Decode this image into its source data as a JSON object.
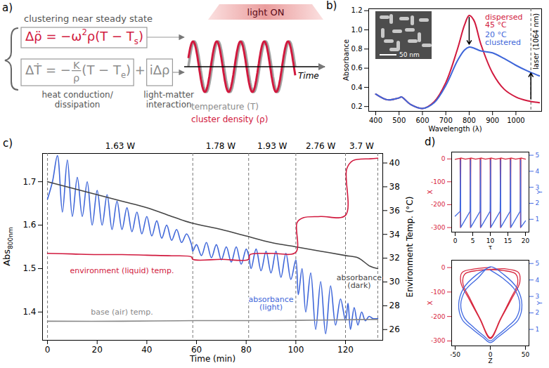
{
  "diagram": {
    "panel": "a)",
    "header": "clustering near steady state",
    "equations": [
      {
        "color": "#d1193e",
        "parts": [
          {
            "text": "Δρ̈ = −ω"
          },
          {
            "text": "2",
            "sup": true
          },
          {
            "text": "ρ(T − T"
          },
          {
            "text": "s",
            "sub": true
          },
          {
            "text": ")"
          }
        ]
      },
      {
        "color": "#8c8c8c",
        "parts": [
          {
            "text": "ΔṪ = −"
          },
          {
            "frac": [
              "K",
              "ρ"
            ]
          },
          {
            "text": "(T − T"
          },
          {
            "text": "e",
            "sub": true
          },
          {
            "text": ")"
          },
          {
            "text": " + "
          },
          {
            "text": "iΔρ"
          }
        ]
      }
    ],
    "term_labels": [
      "heat conduction/\ndissipation",
      "light-matter\ninteraction"
    ],
    "banner": "light ON",
    "time_label": "Time",
    "wave_labels": [
      {
        "text": "temperature (T)",
        "color": "#8c8c8c"
      },
      {
        "text": "cluster density (ρ)",
        "color": "#d1193e"
      }
    ]
  },
  "chart_data": [
    {
      "panel": "b)",
      "type": "line",
      "xlabel": "Wavelength (λ)",
      "ylabel": "Absorbance",
      "xlim": [
        370,
        1110
      ],
      "xticks": [
        400,
        500,
        600,
        700,
        800,
        900,
        1000
      ],
      "ylim": [
        0.15,
        1.22
      ],
      "yticks": [
        0.2,
        0.4,
        0.6,
        0.8,
        {
          "value": 1,
          "label": "1.0"
        },
        1.2
      ],
      "x": [
        400,
        450,
        500,
        510,
        550,
        600,
        650,
        700,
        750,
        780,
        800,
        820,
        850,
        900,
        950,
        1000,
        1050,
        1100
      ],
      "series": [
        {
          "name": "dispersed\n45 °C",
          "color": "#d1193e",
          "values": [
            0.33,
            0.27,
            0.29,
            0.3,
            0.22,
            0.18,
            0.25,
            0.45,
            0.8,
            1.05,
            1.15,
            1.1,
            0.85,
            0.55,
            0.38,
            0.3,
            0.26,
            0.24
          ]
        },
        {
          "name": "20 °C\nclustered",
          "color": "#3e66d9",
          "values": [
            0.33,
            0.27,
            0.29,
            0.3,
            0.22,
            0.18,
            0.24,
            0.42,
            0.68,
            0.79,
            0.82,
            0.81,
            0.78,
            0.76,
            0.7,
            0.63,
            0.57,
            0.52
          ]
        }
      ],
      "vlines": [
        {
          "value": 1064,
          "label": "laser (1064 nm)"
        }
      ],
      "inset": {
        "scale_bar": "50 nm"
      }
    },
    {
      "panel": "c)",
      "type": "line",
      "xlabel": "Time (min)",
      "ylabel": "Abs",
      "ylabel_sub": "800nm",
      "y2label": "Environment Temp. (°C)",
      "xlim": [
        -2,
        135
      ],
      "xticks": [
        0,
        20,
        40,
        60,
        80,
        100,
        120
      ],
      "ylim": [
        1.335,
        1.765
      ],
      "yticks": [
        1.4,
        1.5,
        1.6,
        1.7
      ],
      "y2lim": [
        25.1,
        40.8
      ],
      "y2ticks": [
        26,
        28,
        30,
        32,
        34,
        36,
        38,
        40
      ],
      "segments": [
        {
          "label": "1.63 W",
          "start": 0,
          "end": 58.5
        },
        {
          "label": "1.78 W",
          "start": 58.5,
          "end": 81
        },
        {
          "label": "1.93 W",
          "start": 81,
          "end": 100
        },
        {
          "label": "2.76 W",
          "start": 100,
          "end": 120
        },
        {
          "label": "3.7 W",
          "start": 120,
          "end": 133
        }
      ],
      "series": [
        {
          "name": "absorbance\n(light)",
          "color": "#3e66d9",
          "axis": "y",
          "x": [
            0,
            2,
            4,
            6,
            8,
            10,
            12,
            14,
            16,
            18,
            20,
            22,
            24,
            26,
            28,
            30,
            32,
            34,
            36,
            38,
            40,
            42,
            44,
            46,
            48,
            50,
            52,
            54,
            56,
            58,
            58.5,
            60,
            62,
            64,
            66,
            68,
            70,
            72,
            74,
            76,
            78,
            80,
            81,
            82,
            84,
            86,
            88,
            90,
            92,
            94,
            96,
            98,
            100,
            101,
            102.5,
            104,
            106,
            108,
            110,
            112,
            114,
            116,
            118,
            120,
            121,
            122,
            123.5,
            125,
            126.5,
            128,
            129.5,
            131,
            133
          ],
          "values": [
            1.66,
            1.7,
            1.76,
            1.63,
            1.75,
            1.62,
            1.71,
            1.62,
            1.7,
            1.6,
            1.68,
            1.6,
            1.67,
            1.59,
            1.655,
            1.59,
            1.64,
            1.585,
            1.63,
            1.58,
            1.62,
            1.575,
            1.61,
            1.57,
            1.6,
            1.565,
            1.59,
            1.56,
            1.58,
            1.555,
            1.54,
            1.555,
            1.53,
            1.56,
            1.525,
            1.555,
            1.52,
            1.55,
            1.515,
            1.55,
            1.51,
            1.545,
            1.53,
            1.5,
            1.545,
            1.495,
            1.54,
            1.49,
            1.54,
            1.48,
            1.535,
            1.475,
            1.52,
            1.44,
            1.5,
            1.4,
            1.49,
            1.36,
            1.47,
            1.35,
            1.46,
            1.37,
            1.43,
            1.38,
            1.42,
            1.36,
            1.41,
            1.37,
            1.4,
            1.38,
            1.39,
            1.385,
            1.385
          ]
        },
        {
          "name": "absorbance\n(dark)",
          "color": "#444444",
          "axis": "y",
          "x": [
            0,
            10,
            20,
            30,
            40,
            50,
            58,
            70,
            80,
            90,
            100,
            110,
            120,
            125,
            130,
            133
          ],
          "values": [
            1.7,
            1.685,
            1.67,
            1.655,
            1.64,
            1.62,
            1.605,
            1.59,
            1.575,
            1.56,
            1.55,
            1.54,
            1.53,
            1.525,
            1.505,
            1.5
          ]
        },
        {
          "name": "environment (liquid) temp.",
          "color": "#d1193e",
          "axis": "y2",
          "x": [
            0,
            10,
            20,
            30,
            40,
            50,
            58,
            58.5,
            70,
            81,
            81.5,
            90,
            100,
            100.5,
            103,
            110,
            120,
            120.5,
            123,
            130,
            133
          ],
          "values": [
            32.4,
            32.35,
            32.3,
            32.3,
            32.25,
            32.2,
            32.1,
            31.9,
            31.9,
            31.9,
            32.3,
            32.4,
            32.5,
            35.0,
            35.4,
            35.5,
            35.6,
            39.5,
            40.2,
            40.35,
            40.4
          ]
        },
        {
          "name": "base (air) temp.",
          "color": "#888888",
          "axis": "y2",
          "x": [
            0,
            30,
            60,
            90,
            110,
            133
          ],
          "values": [
            26.7,
            26.7,
            26.75,
            26.75,
            26.8,
            26.85
          ]
        }
      ]
    },
    {
      "panel": "d)",
      "type": "line",
      "xlabel": "τ",
      "ylabel": "X",
      "y2label": "Y",
      "xlim": [
        -1,
        21
      ],
      "xticks": [
        0,
        5,
        10,
        15,
        20
      ],
      "ylim": [
        -320,
        30
      ],
      "yticks": [
        0,
        -100,
        -200,
        -300
      ],
      "y2lim": [
        0.2,
        5.2
      ],
      "y2ticks": [
        1,
        2,
        3,
        4,
        5
      ],
      "series": [
        {
          "color": "#d7263d",
          "axis": "y",
          "x": [
            0,
            1.4,
            1.5,
            1.6,
            2.9,
            4.25,
            4.35,
            4.45,
            5.8,
            7.1,
            7.2,
            7.3,
            8.6,
            9.95,
            10.05,
            10.15,
            11.5,
            12.8,
            12.9,
            13.0,
            14.3,
            15.65,
            15.75,
            15.85,
            17.2,
            18.5,
            18.6,
            18.7,
            20
          ],
          "values": [
            -2,
            3,
            -300,
            4,
            -1,
            3,
            -300,
            4,
            -1,
            3,
            -300,
            4,
            -1,
            3,
            -300,
            4,
            -1,
            3,
            -300,
            4,
            -1,
            3,
            -300,
            4,
            -1,
            3,
            -300,
            4,
            -1
          ]
        },
        {
          "color": "#4169e1",
          "axis": "y2",
          "x": [
            0,
            1.4,
            1.5,
            1.6,
            4.25,
            4.35,
            4.45,
            7.1,
            7.2,
            7.3,
            9.95,
            10.05,
            10.15,
            12.8,
            12.9,
            13.0,
            15.65,
            15.75,
            15.85,
            18.5,
            18.6,
            18.7,
            20
          ],
          "values": [
            1.2,
            1.5,
            4.7,
            0.5,
            1.5,
            4.7,
            0.5,
            1.5,
            4.7,
            0.5,
            1.5,
            4.7,
            0.5,
            1.5,
            4.7,
            0.5,
            1.5,
            4.7,
            0.5,
            1.5,
            4.7,
            0.5,
            0.9
          ]
        }
      ]
    },
    {
      "type": "line",
      "xlabel": "Z",
      "ylabel": "X",
      "y2label": "Y",
      "xlim": [
        -55,
        55
      ],
      "xticks": [
        -50,
        0,
        50
      ],
      "ylim": [
        -320,
        30
      ],
      "yticks": [
        0,
        -100,
        -200,
        -300
      ],
      "y2lim": [
        0,
        5.2
      ],
      "y2ticks": [
        1,
        2,
        3,
        4,
        5
      ],
      "series": [
        {
          "color": "#d7263d",
          "axis": "y",
          "x": [
            0,
            -20,
            -40,
            -42,
            -30,
            -15,
            0,
            15,
            30,
            42,
            40,
            20,
            0,
            -18,
            -36,
            -39,
            -28,
            -14,
            0,
            14,
            28,
            39,
            36,
            18,
            0
          ],
          "values": [
            0,
            -5,
            -20,
            -60,
            -130,
            -210,
            -290,
            -210,
            -130,
            -60,
            -20,
            -5,
            -8,
            -12,
            -26,
            -64,
            -132,
            -212,
            -286,
            -212,
            -132,
            -64,
            -26,
            -12,
            -8
          ]
        },
        {
          "color": "#4169e1",
          "axis": "y2",
          "x": [
            0,
            -20,
            -38,
            -45,
            -40,
            -25,
            -10,
            0,
            10,
            25,
            40,
            45,
            38,
            20,
            0,
            -18,
            -35,
            -42,
            -37,
            -23,
            -9,
            0,
            9,
            23,
            37,
            42,
            35,
            18,
            0
          ],
          "values": [
            4.8,
            4.3,
            3.5,
            2.5,
            1.6,
            1.0,
            0.5,
            0.2,
            0.5,
            1.0,
            1.6,
            2.5,
            3.5,
            4.3,
            4.8,
            4.1,
            3.4,
            2.5,
            1.7,
            1.1,
            0.6,
            0.3,
            0.6,
            1.1,
            1.7,
            2.5,
            3.4,
            4.1,
            4.6
          ]
        }
      ]
    }
  ]
}
